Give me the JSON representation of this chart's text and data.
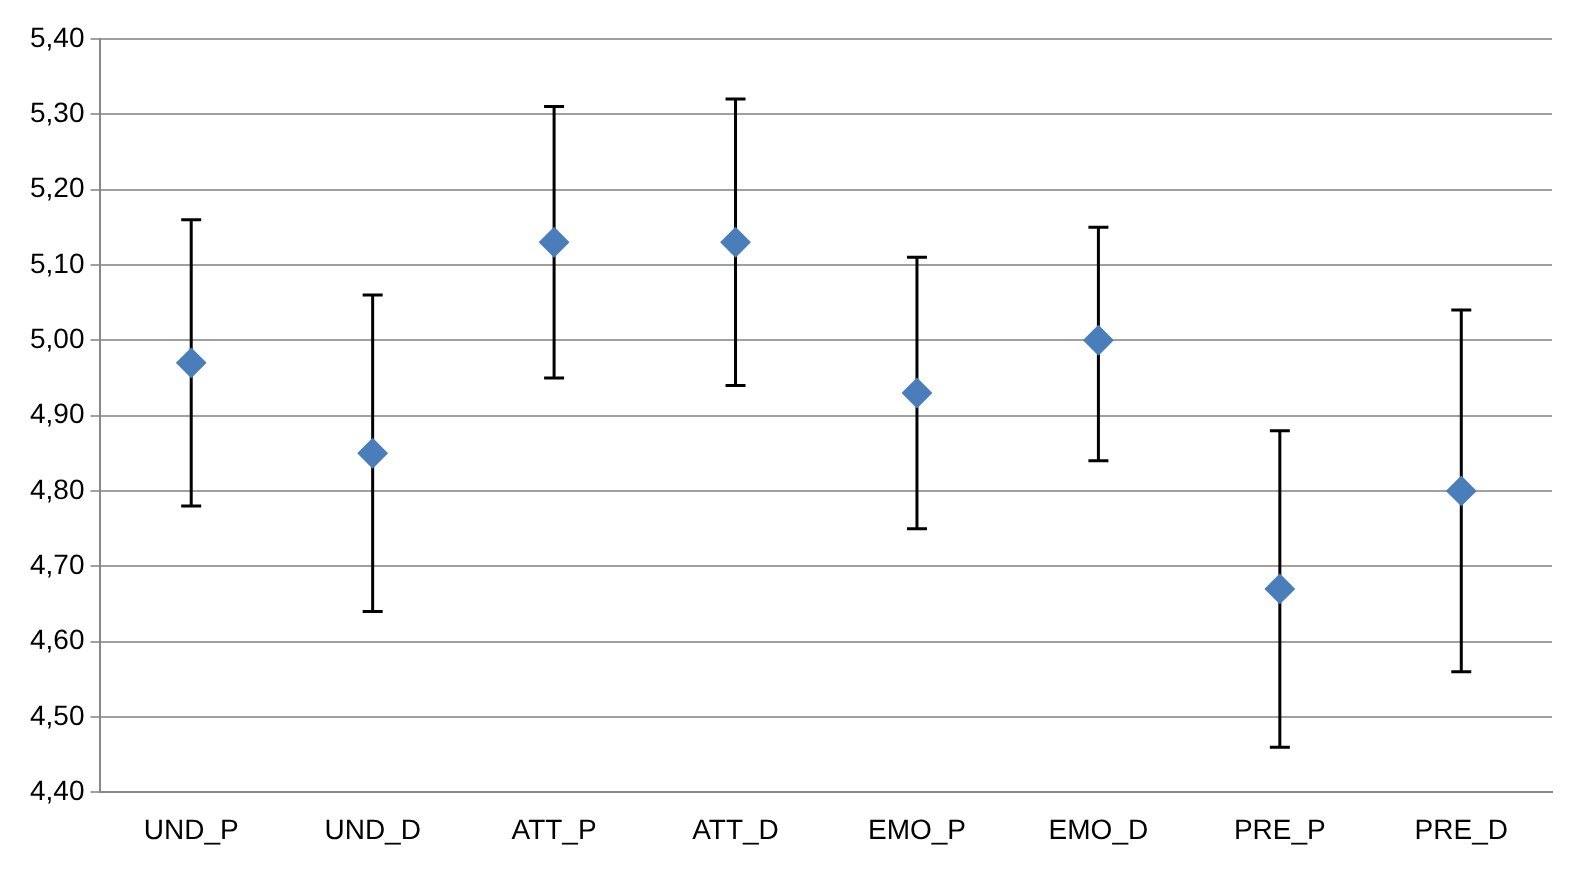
{
  "chart_data": {
    "type": "scatter",
    "categories": [
      "UND_P",
      "UND_D",
      "ATT_P",
      "ATT_D",
      "EMO_P",
      "EMO_D",
      "PRE_P",
      "PRE_D"
    ],
    "series": [
      {
        "color": "#4a7ebb",
        "values": [
          4.97,
          4.85,
          5.13,
          5.13,
          4.93,
          5.0,
          4.67,
          4.8
        ],
        "errors": [
          [
            4.78,
            5.16
          ],
          [
            4.64,
            5.06
          ],
          [
            4.95,
            5.31
          ],
          [
            4.94,
            5.32
          ],
          [
            4.75,
            5.11
          ],
          [
            4.84,
            5.15
          ],
          [
            4.46,
            4.88
          ],
          [
            4.56,
            5.04
          ]
        ]
      }
    ],
    "ylim": [
      4.4,
      5.4
    ],
    "yticks": [
      {
        "value": 4.4,
        "label": "4,40"
      },
      {
        "value": 4.5,
        "label": "4,50"
      },
      {
        "value": 4.6,
        "label": "4,60"
      },
      {
        "value": 4.7,
        "label": "4,70"
      },
      {
        "value": 4.8,
        "label": "4,80"
      },
      {
        "value": 4.9,
        "label": "4,90"
      },
      {
        "value": 5.0,
        "label": "5,00"
      },
      {
        "value": 5.1,
        "label": "5,10"
      },
      {
        "value": 5.2,
        "label": "5,20"
      },
      {
        "value": 5.3,
        "label": "5,30"
      },
      {
        "value": 5.4,
        "label": "5,40"
      }
    ],
    "grid": "y",
    "marker": "diamond"
  }
}
